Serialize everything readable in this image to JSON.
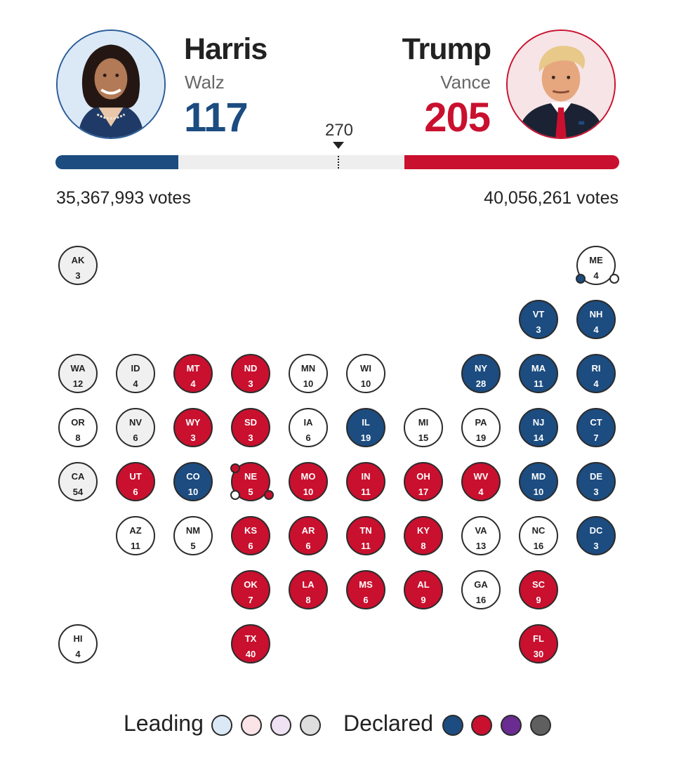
{
  "header": {
    "harris": {
      "name": "Harris",
      "running_mate": "Walz",
      "electoral_votes": "117",
      "popular_votes": "35,367,993 votes",
      "color": "#1c4c80"
    },
    "trump": {
      "name": "Trump",
      "running_mate": "Vance",
      "electoral_votes": "205",
      "popular_votes": "40,056,261 votes",
      "color": "#c9102e"
    },
    "threshold": "270"
  },
  "progress": {
    "total": 538,
    "harris": 117,
    "trump": 205
  },
  "states": [
    {
      "abbr": "AK",
      "ev": "3",
      "status": "gray"
    },
    {
      "abbr": "ME",
      "ev": "4",
      "status": "white"
    },
    {
      "abbr": "VT",
      "ev": "3",
      "status": "blue"
    },
    {
      "abbr": "NH",
      "ev": "4",
      "status": "blue"
    },
    {
      "abbr": "WA",
      "ev": "12",
      "status": "gray"
    },
    {
      "abbr": "ID",
      "ev": "4",
      "status": "gray"
    },
    {
      "abbr": "MT",
      "ev": "4",
      "status": "red"
    },
    {
      "abbr": "ND",
      "ev": "3",
      "status": "red"
    },
    {
      "abbr": "MN",
      "ev": "10",
      "status": "white"
    },
    {
      "abbr": "WI",
      "ev": "10",
      "status": "white"
    },
    {
      "abbr": "NY",
      "ev": "28",
      "status": "blue"
    },
    {
      "abbr": "MA",
      "ev": "11",
      "status": "blue"
    },
    {
      "abbr": "RI",
      "ev": "4",
      "status": "blue"
    },
    {
      "abbr": "OR",
      "ev": "8",
      "status": "white"
    },
    {
      "abbr": "NV",
      "ev": "6",
      "status": "gray"
    },
    {
      "abbr": "WY",
      "ev": "3",
      "status": "red"
    },
    {
      "abbr": "SD",
      "ev": "3",
      "status": "red"
    },
    {
      "abbr": "IA",
      "ev": "6",
      "status": "white"
    },
    {
      "abbr": "IL",
      "ev": "19",
      "status": "blue"
    },
    {
      "abbr": "MI",
      "ev": "15",
      "status": "white"
    },
    {
      "abbr": "PA",
      "ev": "19",
      "status": "white"
    },
    {
      "abbr": "NJ",
      "ev": "14",
      "status": "blue"
    },
    {
      "abbr": "CT",
      "ev": "7",
      "status": "blue"
    },
    {
      "abbr": "CA",
      "ev": "54",
      "status": "gray"
    },
    {
      "abbr": "UT",
      "ev": "6",
      "status": "red"
    },
    {
      "abbr": "CO",
      "ev": "10",
      "status": "blue"
    },
    {
      "abbr": "NE",
      "ev": "5",
      "status": "red"
    },
    {
      "abbr": "MO",
      "ev": "10",
      "status": "red"
    },
    {
      "abbr": "IN",
      "ev": "11",
      "status": "red"
    },
    {
      "abbr": "OH",
      "ev": "17",
      "status": "red"
    },
    {
      "abbr": "WV",
      "ev": "4",
      "status": "red"
    },
    {
      "abbr": "MD",
      "ev": "10",
      "status": "blue"
    },
    {
      "abbr": "DE",
      "ev": "3",
      "status": "blue"
    },
    {
      "abbr": "AZ",
      "ev": "11",
      "status": "white"
    },
    {
      "abbr": "NM",
      "ev": "5",
      "status": "white"
    },
    {
      "abbr": "KS",
      "ev": "6",
      "status": "red"
    },
    {
      "abbr": "AR",
      "ev": "6",
      "status": "red"
    },
    {
      "abbr": "TN",
      "ev": "11",
      "status": "red"
    },
    {
      "abbr": "KY",
      "ev": "8",
      "status": "red"
    },
    {
      "abbr": "VA",
      "ev": "13",
      "status": "white"
    },
    {
      "abbr": "NC",
      "ev": "16",
      "status": "white"
    },
    {
      "abbr": "DC",
      "ev": "3",
      "status": "blue"
    },
    {
      "abbr": "OK",
      "ev": "7",
      "status": "red"
    },
    {
      "abbr": "LA",
      "ev": "8",
      "status": "red"
    },
    {
      "abbr": "MS",
      "ev": "6",
      "status": "red"
    },
    {
      "abbr": "AL",
      "ev": "9",
      "status": "red"
    },
    {
      "abbr": "GA",
      "ev": "16",
      "status": "white"
    },
    {
      "abbr": "SC",
      "ev": "9",
      "status": "red"
    },
    {
      "abbr": "HI",
      "ev": "4",
      "status": "white"
    },
    {
      "abbr": "TX",
      "ev": "40",
      "status": "red"
    },
    {
      "abbr": "FL",
      "ev": "30",
      "status": "red"
    }
  ],
  "legend": {
    "leading_label": "Leading",
    "declared_label": "Declared",
    "leading_colors": [
      "#dbe9f7",
      "#fbe4e7",
      "#efe2f3",
      "#dedede"
    ],
    "declared_colors": [
      "#1c4c80",
      "#c9102e",
      "#6a2c91",
      "#5f5f5f"
    ]
  }
}
